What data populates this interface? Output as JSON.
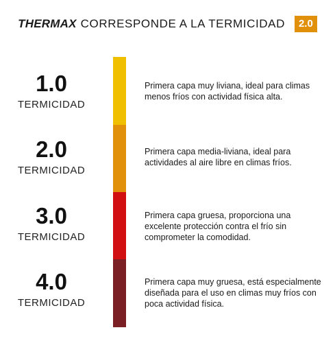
{
  "header": {
    "brand": "THERMAX",
    "text": "CORRESPONDE A LA TERMICIDAD",
    "badge": "2.0",
    "badge_color": "#e0900a"
  },
  "levels": [
    {
      "number": "1.0",
      "label": "TERMICIDAD",
      "color": "#f0c000",
      "description": "Primera capa muy liviana, ideal para climas menos fríos con actividad física alta."
    },
    {
      "number": "2.0",
      "label": "TERMICIDAD",
      "color": "#e0900a",
      "description": "Primera capa media-liviana, ideal para actividades al aire libre en climas fríos."
    },
    {
      "number": "3.0",
      "label": "TERMICIDAD",
      "color": "#d20f10",
      "description": "Primera capa gruesa, proporciona una excelente protección contra el frío sin comprometer la comodidad."
    },
    {
      "number": "4.0",
      "label": "TERMICIDAD",
      "color": "#7a1f23",
      "description": "Primera capa muy gruesa, está especialmente diseñada para el uso en climas muy fríos con poca actividad física."
    }
  ]
}
